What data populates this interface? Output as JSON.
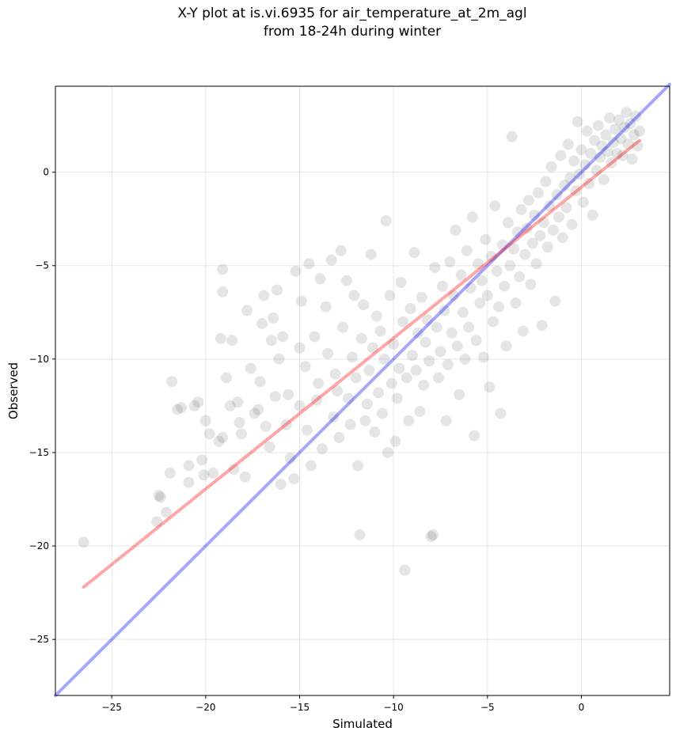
{
  "chart_data": {
    "type": "scatter",
    "title": "X-Y plot at is.vi.6935 for air_temperature_at_2m_agl",
    "subtitle": "from 18-24h during winter",
    "xlabel": "Simulated",
    "ylabel": "Observed",
    "xlim": [
      -28.0,
      4.7
    ],
    "ylim": [
      -28.0,
      4.6
    ],
    "xticks": [
      -25,
      -20,
      -15,
      -10,
      -5,
      0
    ],
    "yticks": [
      -25,
      -20,
      -15,
      -10,
      -5,
      0
    ],
    "xtick_labels": [
      "−25",
      "−20",
      "−15",
      "−10",
      "−5",
      "0"
    ],
    "ytick_labels": [
      "−25",
      "−20",
      "−15",
      "−10",
      "−5",
      "0"
    ],
    "grid": true,
    "marker_color": "#000000",
    "marker_alpha": 0.1,
    "lines": [
      {
        "kind": "identity (y = x)",
        "color": "#0000ff",
        "alpha": 0.35,
        "x": [
          -28.0,
          4.7
        ],
        "y": [
          -28.0,
          4.7
        ]
      },
      {
        "kind": "linear fit",
        "color": "#ff0000",
        "alpha": 0.35,
        "x": [
          -26.5,
          3.1
        ],
        "y": [
          -22.2,
          1.7
        ]
      }
    ],
    "points": [
      [
        -26.5,
        -19.8
      ],
      [
        -22.5,
        -17.3
      ],
      [
        -22.4,
        -17.4
      ],
      [
        -22.6,
        -18.7
      ],
      [
        -22.1,
        -18.2
      ],
      [
        -21.8,
        -11.2
      ],
      [
        -21.5,
        -12.7
      ],
      [
        -21.3,
        -12.6
      ],
      [
        -21.9,
        -16.1
      ],
      [
        -20.9,
        -15.7
      ],
      [
        -20.9,
        -16.6
      ],
      [
        -20.6,
        -12.5
      ],
      [
        -20.4,
        -12.3
      ],
      [
        -20.2,
        -15.4
      ],
      [
        -20.0,
        -13.3
      ],
      [
        -20.1,
        -16.2
      ],
      [
        -19.8,
        -14.0
      ],
      [
        -19.6,
        -16.1
      ],
      [
        -19.3,
        -14.4
      ],
      [
        -19.1,
        -14.2
      ],
      [
        -19.2,
        -8.9
      ],
      [
        -19.1,
        -6.4
      ],
      [
        -19.1,
        -5.2
      ],
      [
        -18.9,
        -11.0
      ],
      [
        -18.7,
        -12.5
      ],
      [
        -18.6,
        -9.0
      ],
      [
        -18.5,
        -15.9
      ],
      [
        -18.3,
        -12.3
      ],
      [
        -18.2,
        -13.4
      ],
      [
        -18.1,
        -14.0
      ],
      [
        -17.9,
        -16.3
      ],
      [
        -17.8,
        -7.4
      ],
      [
        -17.6,
        -10.5
      ],
      [
        -17.4,
        -12.9
      ],
      [
        -17.2,
        -12.7
      ],
      [
        -17.1,
        -11.2
      ],
      [
        -17.0,
        -8.1
      ],
      [
        -16.9,
        -6.6
      ],
      [
        -16.8,
        -13.6
      ],
      [
        -16.6,
        -14.7
      ],
      [
        -16.5,
        -9.0
      ],
      [
        -16.4,
        -7.8
      ],
      [
        -16.3,
        -12.0
      ],
      [
        -16.2,
        -6.3
      ],
      [
        -16.1,
        -10.0
      ],
      [
        -16.0,
        -16.7
      ],
      [
        -15.9,
        -8.8
      ],
      [
        -15.7,
        -13.5
      ],
      [
        -15.6,
        -11.9
      ],
      [
        -15.5,
        -15.3
      ],
      [
        -15.3,
        -16.4
      ],
      [
        -15.2,
        -5.3
      ],
      [
        -15.0,
        -12.5
      ],
      [
        -15.0,
        -9.4
      ],
      [
        -14.9,
        -6.9
      ],
      [
        -14.7,
        -10.4
      ],
      [
        -14.6,
        -13.8
      ],
      [
        -14.5,
        -4.9
      ],
      [
        -14.4,
        -15.7
      ],
      [
        -14.2,
        -8.8
      ],
      [
        -14.1,
        -12.2
      ],
      [
        -14.0,
        -11.3
      ],
      [
        -13.9,
        -5.7
      ],
      [
        -13.8,
        -14.8
      ],
      [
        -13.6,
        -7.2
      ],
      [
        -13.5,
        -9.7
      ],
      [
        -13.3,
        -4.7
      ],
      [
        -13.2,
        -13.1
      ],
      [
        -13.1,
        -10.8
      ],
      [
        -13.0,
        -11.7
      ],
      [
        -12.9,
        -14.2
      ],
      [
        -12.8,
        -4.2
      ],
      [
        -12.7,
        -8.3
      ],
      [
        -12.5,
        -5.8
      ],
      [
        -12.4,
        -12.1
      ],
      [
        -12.3,
        -13.5
      ],
      [
        -12.2,
        -9.9
      ],
      [
        -12.1,
        -6.6
      ],
      [
        -12.0,
        -11.0
      ],
      [
        -11.9,
        -15.7
      ],
      [
        -11.8,
        -19.4
      ],
      [
        -11.7,
        -8.9
      ],
      [
        -11.6,
        -7.1
      ],
      [
        -11.5,
        -13.3
      ],
      [
        -11.4,
        -12.4
      ],
      [
        -11.3,
        -10.6
      ],
      [
        -11.2,
        -4.4
      ],
      [
        -11.1,
        -9.4
      ],
      [
        -11.0,
        -13.9
      ],
      [
        -10.9,
        -7.7
      ],
      [
        -10.8,
        -11.8
      ],
      [
        -10.7,
        -8.5
      ],
      [
        -10.6,
        -12.9
      ],
      [
        -10.5,
        -10.0
      ],
      [
        -10.4,
        -2.6
      ],
      [
        -10.3,
        -15.0
      ],
      [
        -10.2,
        -6.6
      ],
      [
        -10.1,
        -11.3
      ],
      [
        -10.0,
        -9.2
      ],
      [
        -9.9,
        -14.4
      ],
      [
        -9.8,
        -12.1
      ],
      [
        -9.7,
        -10.5
      ],
      [
        -9.6,
        -5.9
      ],
      [
        -9.5,
        -8.0
      ],
      [
        -9.4,
        -21.3
      ],
      [
        -9.3,
        -11.0
      ],
      [
        -9.2,
        -13.3
      ],
      [
        -9.1,
        -7.3
      ],
      [
        -9.0,
        -9.8
      ],
      [
        -8.9,
        -4.3
      ],
      [
        -8.8,
        -10.6
      ],
      [
        -8.7,
        -8.6
      ],
      [
        -8.6,
        -12.8
      ],
      [
        -8.5,
        -6.7
      ],
      [
        -8.4,
        -11.4
      ],
      [
        -8.3,
        -9.1
      ],
      [
        -8.2,
        -7.9
      ],
      [
        -8.1,
        -10.1
      ],
      [
        -8.0,
        -19.5
      ],
      [
        -7.9,
        -19.4
      ],
      [
        -7.8,
        -5.1
      ],
      [
        -7.7,
        -8.3
      ],
      [
        -7.6,
        -11.0
      ],
      [
        -7.5,
        -9.6
      ],
      [
        -7.4,
        -6.1
      ],
      [
        -7.3,
        -7.4
      ],
      [
        -7.2,
        -13.3
      ],
      [
        -7.1,
        -10.3
      ],
      [
        -7.0,
        -4.8
      ],
      [
        -6.9,
        -8.6
      ],
      [
        -6.8,
        -6.6
      ],
      [
        -6.7,
        -3.1
      ],
      [
        -6.6,
        -9.3
      ],
      [
        -6.5,
        -11.9
      ],
      [
        -6.4,
        -5.5
      ],
      [
        -6.3,
        -7.5
      ],
      [
        -6.2,
        -10.0
      ],
      [
        -6.1,
        -4.2
      ],
      [
        -6.0,
        -8.3
      ],
      [
        -5.9,
        -6.2
      ],
      [
        -5.8,
        -2.4
      ],
      [
        -5.7,
        -14.1
      ],
      [
        -5.6,
        -9.0
      ],
      [
        -5.5,
        -4.9
      ],
      [
        -5.4,
        -7.0
      ],
      [
        -5.3,
        -5.8
      ],
      [
        -5.2,
        -9.9
      ],
      [
        -5.1,
        -3.6
      ],
      [
        -5.0,
        -6.6
      ],
      [
        -4.9,
        -11.5
      ],
      [
        -4.8,
        -4.5
      ],
      [
        -4.7,
        -8.0
      ],
      [
        -4.6,
        -1.8
      ],
      [
        -4.5,
        -5.3
      ],
      [
        -4.4,
        -7.2
      ],
      [
        -4.3,
        -12.9
      ],
      [
        -4.2,
        -3.9
      ],
      [
        -4.1,
        -6.1
      ],
      [
        -4.0,
        -9.3
      ],
      [
        -3.9,
        -2.7
      ],
      [
        -3.8,
        -5.0
      ],
      [
        -3.7,
        1.9
      ],
      [
        -3.6,
        -4.1
      ],
      [
        -3.5,
        -7.0
      ],
      [
        -3.4,
        -3.2
      ],
      [
        -3.3,
        -5.6
      ],
      [
        -3.2,
        -2.0
      ],
      [
        -3.1,
        -8.5
      ],
      [
        -3.0,
        -4.4
      ],
      [
        -2.9,
        -3.0
      ],
      [
        -2.8,
        -1.5
      ],
      [
        -2.7,
        -6.0
      ],
      [
        -2.6,
        -3.8
      ],
      [
        -2.5,
        -2.3
      ],
      [
        -2.4,
        -4.9
      ],
      [
        -2.3,
        -1.1
      ],
      [
        -2.2,
        -3.4
      ],
      [
        -2.1,
        -8.2
      ],
      [
        -2.0,
        -2.7
      ],
      [
        -1.9,
        -0.5
      ],
      [
        -1.8,
        -4.0
      ],
      [
        -1.7,
        -1.8
      ],
      [
        -1.6,
        0.3
      ],
      [
        -1.5,
        -3.1
      ],
      [
        -1.4,
        -6.9
      ],
      [
        -1.3,
        -1.2
      ],
      [
        -1.2,
        -2.4
      ],
      [
        -1.1,
        0.9
      ],
      [
        -1.0,
        -3.5
      ],
      [
        -0.9,
        -0.7
      ],
      [
        -0.8,
        -1.9
      ],
      [
        -0.7,
        1.5
      ],
      [
        -0.6,
        -0.3
      ],
      [
        -0.5,
        -2.8
      ],
      [
        -0.4,
        0.6
      ],
      [
        -0.3,
        -1.0
      ],
      [
        -0.2,
        2.7
      ],
      [
        -0.1,
        -0.1
      ],
      [
        0.0,
        1.2
      ],
      [
        0.1,
        -1.6
      ],
      [
        0.2,
        0.4
      ],
      [
        0.3,
        2.2
      ],
      [
        0.4,
        -0.6
      ],
      [
        0.5,
        1.0
      ],
      [
        0.6,
        -2.3
      ],
      [
        0.7,
        1.7
      ],
      [
        0.8,
        0.1
      ],
      [
        0.9,
        2.5
      ],
      [
        1.0,
        0.8
      ],
      [
        1.1,
        1.4
      ],
      [
        1.2,
        -0.4
      ],
      [
        1.3,
        2.0
      ],
      [
        1.4,
        1.1
      ],
      [
        1.5,
        2.9
      ],
      [
        1.6,
        0.5
      ],
      [
        1.7,
        1.6
      ],
      [
        1.8,
        2.3
      ],
      [
        1.9,
        1.0
      ],
      [
        2.0,
        2.8
      ],
      [
        2.1,
        1.8
      ],
      [
        2.2,
        0.9
      ],
      [
        2.3,
        2.4
      ],
      [
        2.4,
        3.2
      ],
      [
        2.5,
        1.5
      ],
      [
        2.6,
        2.6
      ],
      [
        2.7,
        0.7
      ],
      [
        2.8,
        2.0
      ],
      [
        2.9,
        3.0
      ],
      [
        3.0,
        1.4
      ],
      [
        3.1,
        2.2
      ]
    ]
  }
}
